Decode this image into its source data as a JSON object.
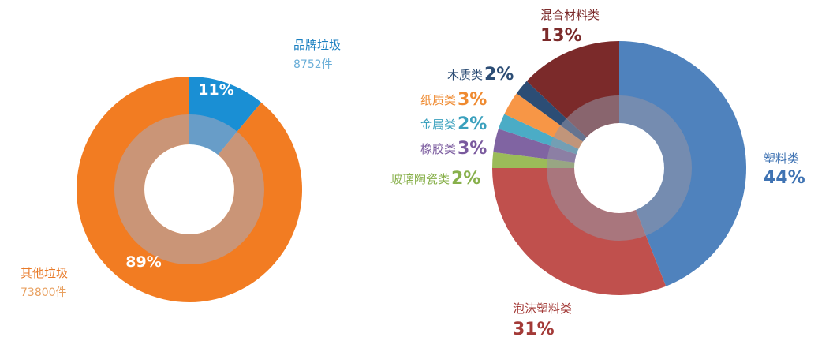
{
  "chart_data": [
    {
      "type": "pie",
      "variant": "donut",
      "title": "",
      "slices": [
        {
          "name": "品牌垃圾",
          "count_label": "8752件",
          "value": 11,
          "label": "11%",
          "color": "#1a8fd4"
        },
        {
          "name": "其他垃圾",
          "count_label": "73800件",
          "value": 89,
          "label": "89%",
          "color": "#f27c22"
        }
      ],
      "name_colors": {
        "品牌垃圾": "#1a7fc0",
        "其他垃圾": "#e87a28"
      },
      "count_colors": {
        "品牌垃圾": "#6aaed8",
        "其他垃圾": "#e8a060"
      }
    },
    {
      "type": "pie",
      "variant": "donut",
      "title": "",
      "slices": [
        {
          "name": "塑料类",
          "value": 44,
          "label": "44%",
          "color": "#4f82bd"
        },
        {
          "name": "泡沫塑料类",
          "value": 31,
          "label": "31%",
          "color": "#c0504d"
        },
        {
          "name": "玻璃陶瓷类",
          "value": 2,
          "label": "2%",
          "color": "#9bbb59"
        },
        {
          "name": "橡胶类",
          "value": 3,
          "label": "3%",
          "color": "#8064a2"
        },
        {
          "name": "金属类",
          "value": 2,
          "label": "2%",
          "color": "#4bacc6"
        },
        {
          "name": "纸质类",
          "value": 3,
          "label": "3%",
          "color": "#f79646"
        },
        {
          "name": "木质类",
          "value": 2,
          "label": "2%",
          "color": "#2c4d75"
        },
        {
          "name": "混合材料类",
          "value": 13,
          "label": "13%",
          "color": "#7b2a2a"
        }
      ],
      "label_colors": {
        "塑料类": "#3f73b3",
        "泡沫塑料类": "#a33a37",
        "玻璃陶瓷类": "#88b04b",
        "橡胶类": "#7a5a9e",
        "金属类": "#3aa0bd",
        "纸质类": "#ef8a30",
        "木质类": "#2c4d75",
        "混合材料类": "#7b2a2a"
      }
    }
  ]
}
